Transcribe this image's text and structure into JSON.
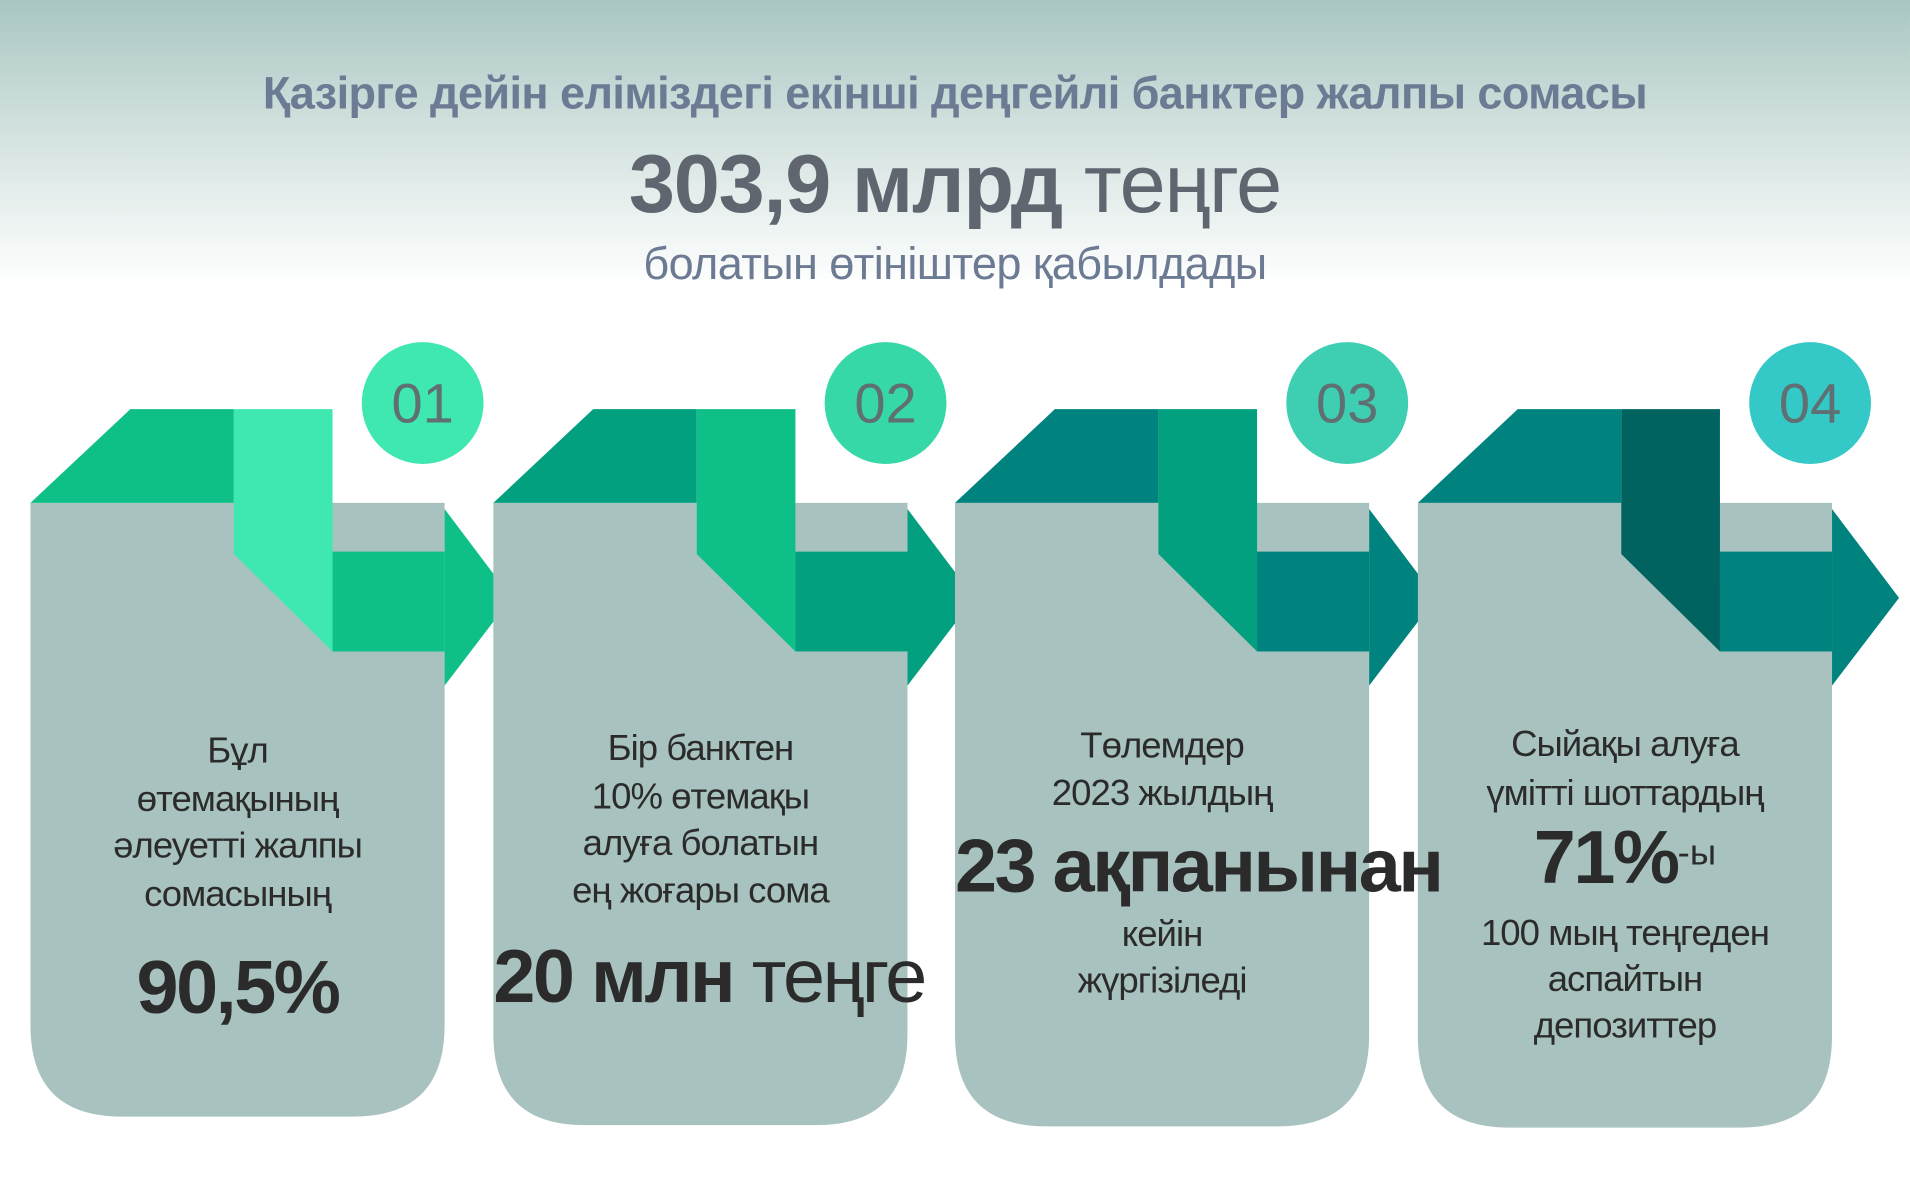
{
  "header": {
    "title": "Қазірге дейін еліміздегі екінші деңгейлі банктер жалпы сомасы",
    "amount_bold": "303,9 млрд",
    "amount_unit": " теңге",
    "subtitle": "болатын өтініштер қабылдады"
  },
  "colors": {
    "card_body": "#a8c3bf",
    "text": "#2b2b2b",
    "step_number": "#5f6f72"
  },
  "cards": [
    {
      "number": "01",
      "top_color": "#0fbf88",
      "ribbon_color": "#3ee8b0",
      "circle_color": "#3ee8b0",
      "lines": [
        "Бұл",
        "өтемақының",
        "әлеуетті жалпы",
        "сомасының"
      ],
      "big_bold": "90,5%",
      "big_normal": "",
      "big_sup": "",
      "after": []
    },
    {
      "number": "02",
      "top_color": "#02a07f",
      "ribbon_color": "#0fbf88",
      "circle_color": "#36d8a8",
      "lines": [
        "Бір банктен",
        "10% өтемақы",
        "алуға болатын",
        "ең жоғары сома"
      ],
      "big_bold": "20 млн",
      "big_normal": " теңге",
      "big_sup": "",
      "after": []
    },
    {
      "number": "03",
      "top_color": "#00827e",
      "ribbon_color": "#02a07f",
      "circle_color": "#3ecfb2",
      "lines": [
        "Төлемдер",
        "2023 жылдың"
      ],
      "big_bold": "23 ақпанынан",
      "big_normal": "",
      "big_sup": "",
      "after": [
        "кейін",
        "жүргізіледі"
      ]
    },
    {
      "number": "04",
      "top_color": "#00827e",
      "ribbon_color": "#006360",
      "circle_color": "#34c8c6",
      "lines": [
        "Сыйақы алуға",
        "үмітті шоттардың"
      ],
      "big_bold": "71%",
      "big_normal": "",
      "big_sup": "-ы",
      "after": [
        "100 мың теңгеден",
        "аспайтын",
        "депозиттер"
      ]
    }
  ]
}
